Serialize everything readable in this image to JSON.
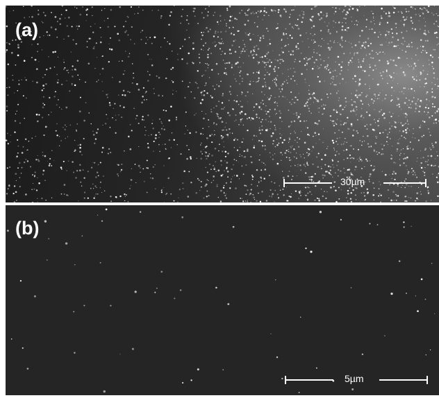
{
  "panel_a": {
    "label": "(a)",
    "scale_bar": "30µm"
  },
  "panel_b": {
    "label": "(b)",
    "scale_bar": "5µm"
  }
}
